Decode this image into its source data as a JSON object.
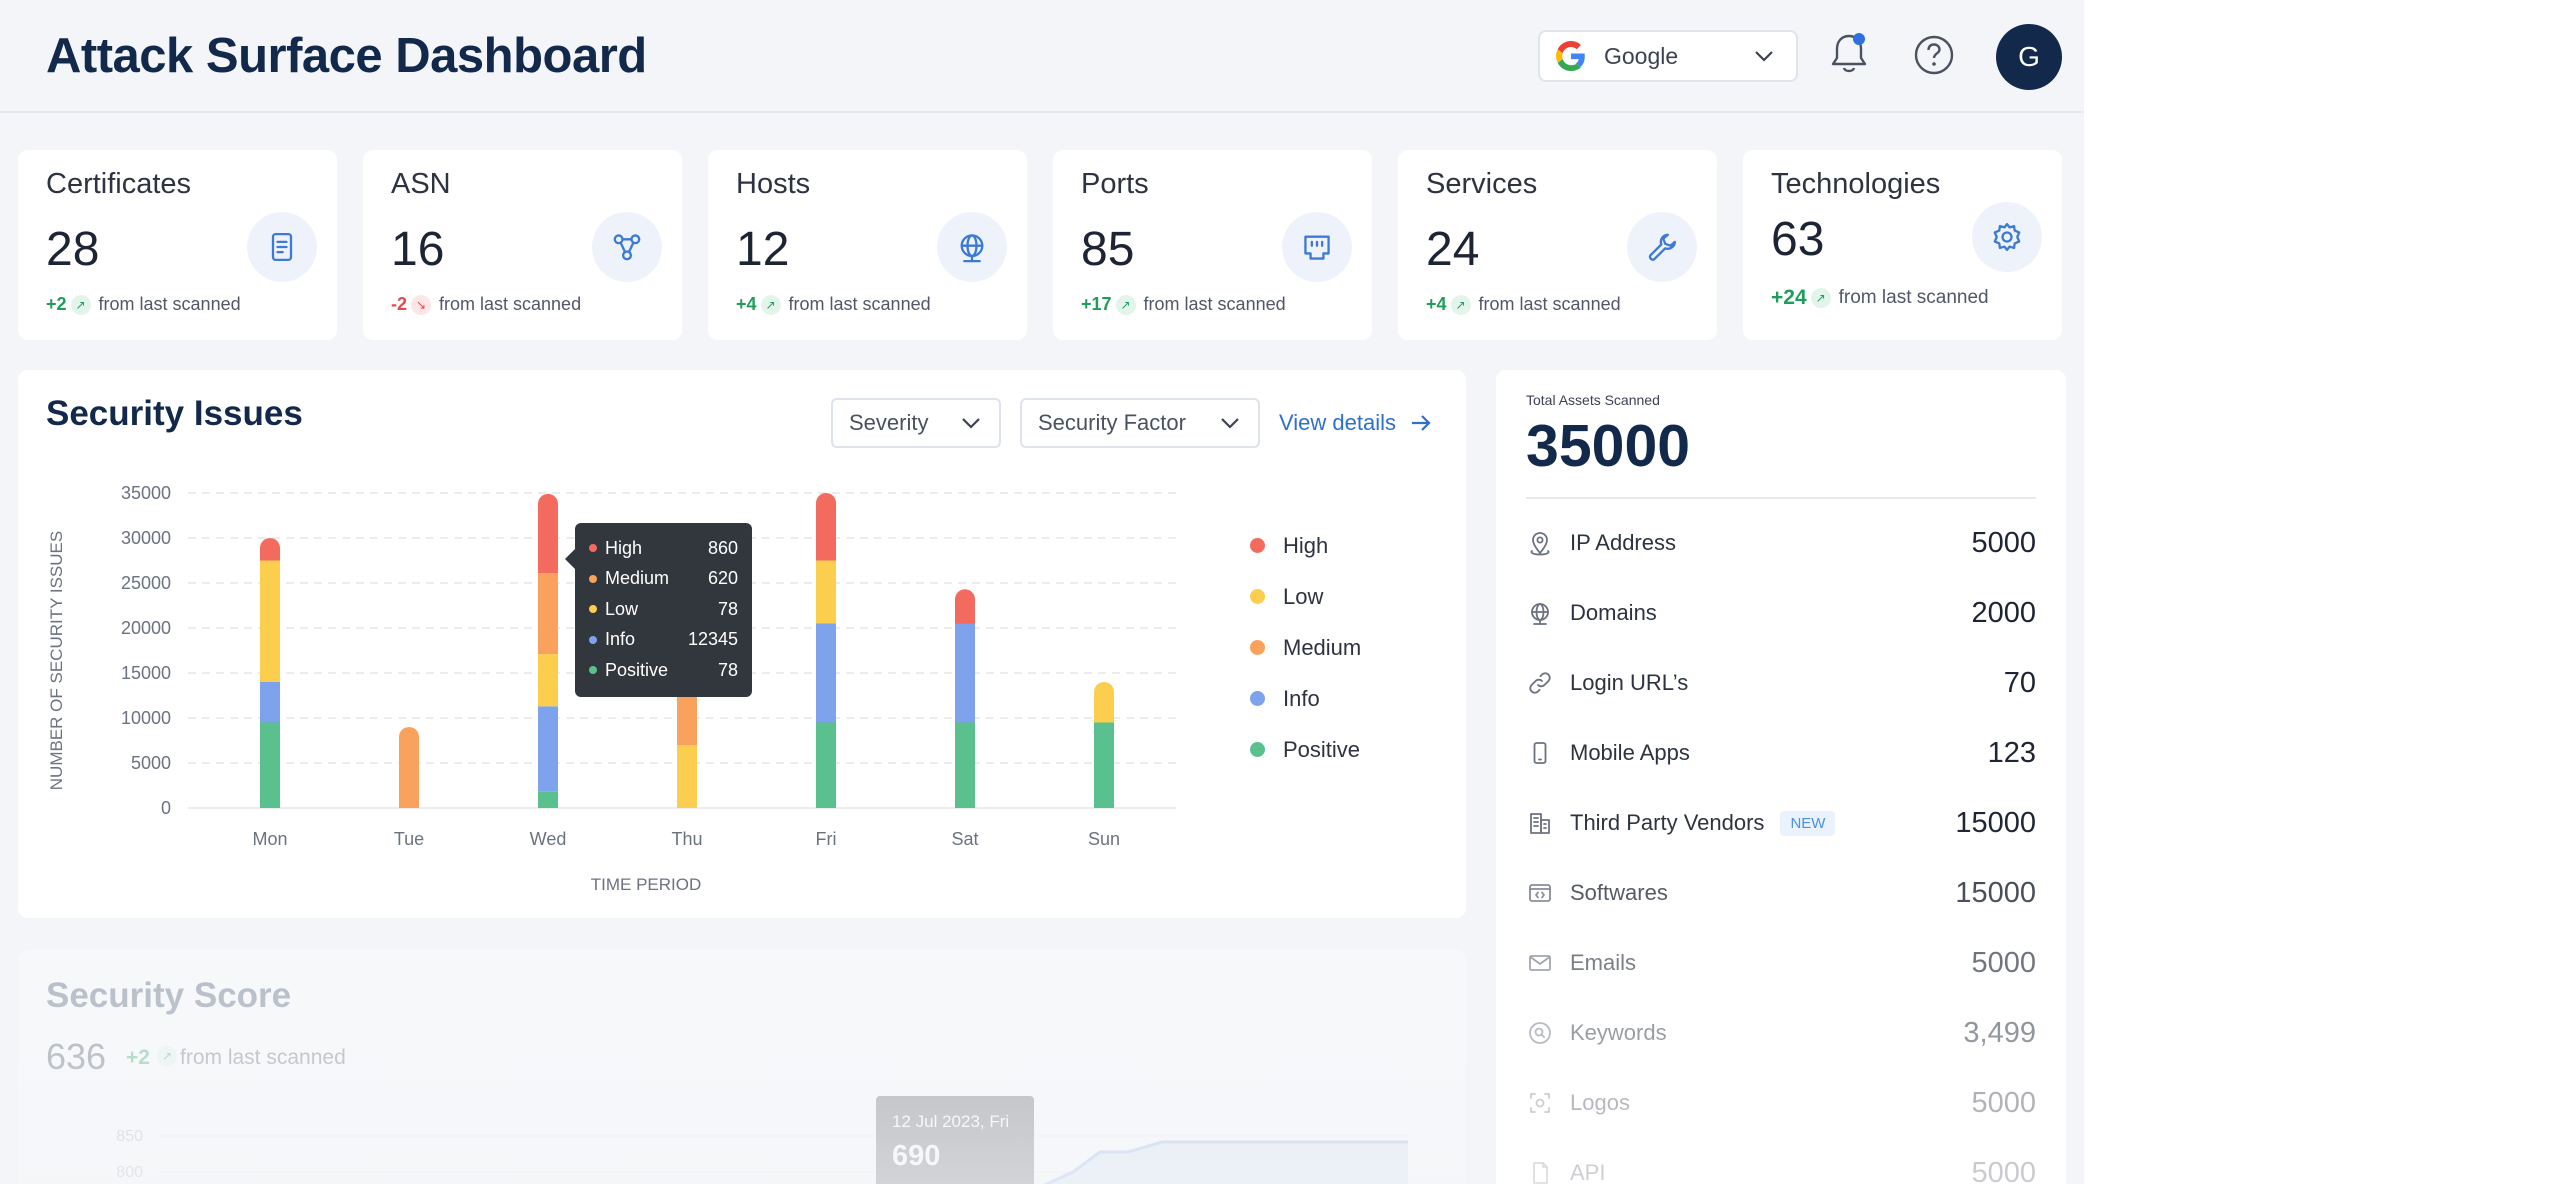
{
  "header": {
    "title": "Attack Surface Dashboard",
    "org_select": {
      "value": "Google",
      "icon": "google-logo"
    },
    "notification_icon": "bell-icon",
    "help_icon": "question-icon",
    "avatar_initial": "G"
  },
  "stats": [
    {
      "title": "Certificates",
      "value": "28",
      "delta": "+2",
      "direction": "up",
      "footer": "from last scanned",
      "icon": "certificate-icon"
    },
    {
      "title": "ASN",
      "value": "16",
      "delta": "-2",
      "direction": "down",
      "footer": "from last scanned",
      "icon": "network-icon"
    },
    {
      "title": "Hosts",
      "value": "12",
      "delta": "+4",
      "direction": "up",
      "footer": "from last scanned",
      "icon": "globe-icon"
    },
    {
      "title": "Ports",
      "value": "85",
      "delta": "+17",
      "direction": "up",
      "footer": "from last scanned",
      "icon": "ethernet-port-icon"
    },
    {
      "title": "Services",
      "value": "24",
      "delta": "+4",
      "direction": "up",
      "footer": "from last scanned",
      "icon": "wrench-icon"
    },
    {
      "title": "Technologies",
      "value": "63",
      "delta": "+24",
      "direction": "up",
      "footer": "from last scanned",
      "icon": "gear-icon"
    }
  ],
  "security_issues": {
    "title": "Security Issues",
    "severity_filter": "Severity",
    "factor_filter": "Security Factor",
    "view_details": "View details",
    "tooltip": {
      "rows": [
        {
          "name": "High",
          "value": "860"
        },
        {
          "name": "Medium",
          "value": "620"
        },
        {
          "name": "Low",
          "value": "78"
        },
        {
          "name": "Info",
          "value": "12345"
        },
        {
          "name": "Positive",
          "value": "78"
        }
      ]
    }
  },
  "chart_data": {
    "type": "bar",
    "stacked": true,
    "xlabel": "TIME PERIOD",
    "ylabel": "NUMBER OF SECURITY ISSUES",
    "ylim": [
      0,
      35000
    ],
    "yticks": [
      "35000",
      "30000",
      "25000",
      "20000",
      "15000",
      "10000",
      "5000",
      "0"
    ],
    "categories": [
      "Mon",
      "Tue",
      "Wed",
      "Thu",
      "Fri",
      "Sat",
      "Sun"
    ],
    "legend_position": "right",
    "series": [
      {
        "name": "Positive",
        "color": "#5ac18e",
        "values": [
          9500,
          0,
          1800,
          0,
          9500,
          9500,
          9500
        ]
      },
      {
        "name": "Info",
        "color": "#7ea3ec",
        "values": [
          4500,
          0,
          9500,
          0,
          11000,
          11000,
          0
        ]
      },
      {
        "name": "Low",
        "color": "#fbcf4d",
        "values": [
          13500,
          0,
          5800,
          7000,
          7000,
          0,
          4500
        ]
      },
      {
        "name": "Medium",
        "color": "#f9a25e",
        "values": [
          0,
          9000,
          9000,
          6500,
          0,
          0,
          0
        ]
      },
      {
        "name": "High",
        "color": "#f36a5e",
        "values": [
          2500,
          0,
          8800,
          0,
          7500,
          3800,
          0
        ]
      }
    ],
    "legend": [
      {
        "name": "High",
        "color": "#f36a5e"
      },
      {
        "name": "Low",
        "color": "#fbcf4d"
      },
      {
        "name": "Medium",
        "color": "#f9a25e"
      },
      {
        "name": "Info",
        "color": "#7ea3ec"
      },
      {
        "name": "Positive",
        "color": "#5ac18e"
      }
    ]
  },
  "assets": {
    "caption": "Total Assets Scanned",
    "total": "35000",
    "items": [
      {
        "label": "IP Address",
        "value": "5000",
        "icon": "location-pin-icon",
        "badge": ""
      },
      {
        "label": "Domains",
        "value": "2000",
        "icon": "globe-icon",
        "badge": ""
      },
      {
        "label": "Login URL’s",
        "value": "70",
        "icon": "link-icon",
        "badge": ""
      },
      {
        "label": "Mobile Apps",
        "value": "123",
        "icon": "mobile-icon",
        "badge": ""
      },
      {
        "label": "Third Party Vendors",
        "value": "15000",
        "icon": "building-icon",
        "badge": "NEW"
      },
      {
        "label": "Softwares",
        "value": "15000",
        "icon": "code-window-icon",
        "badge": ""
      },
      {
        "label": "Emails",
        "value": "5000",
        "icon": "mail-icon",
        "badge": ""
      },
      {
        "label": "Keywords",
        "value": "3,499",
        "icon": "search-circle-icon",
        "badge": ""
      },
      {
        "label": "Logos",
        "value": "5000",
        "icon": "logo-scan-icon",
        "badge": ""
      },
      {
        "label": "API",
        "value": "5000",
        "icon": "file-icon",
        "badge": ""
      }
    ]
  },
  "security_score": {
    "title": "Security Score",
    "value": "636",
    "delta": "+2",
    "footer": "from last scanned",
    "yticks": [
      "850",
      "800"
    ],
    "tooltip_date": "12 Jul 2023, Fri",
    "tooltip_value": "690"
  }
}
